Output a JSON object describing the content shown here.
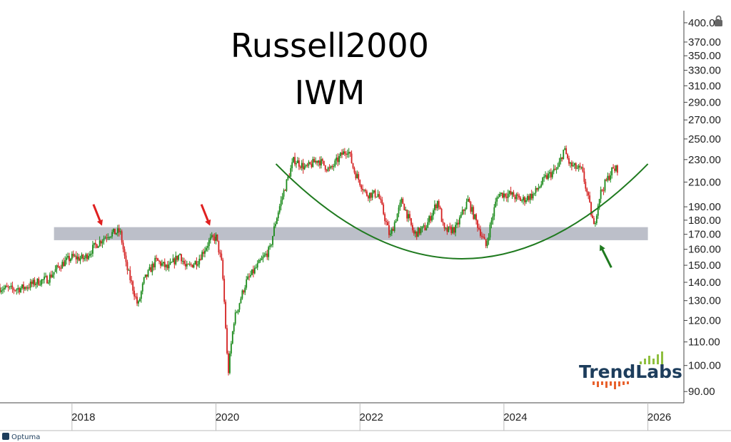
{
  "chart_data": {
    "type": "candlestick",
    "title": "Russell2000",
    "subtitle": "IWM",
    "scale": "log",
    "ylim": [
      86,
      420
    ],
    "xlim": [
      "2017-01-01",
      "2026-07-01"
    ],
    "y_ticks": [
      "400.00",
      "370.00",
      "350.00",
      "330.00",
      "310.00",
      "290.00",
      "270.00",
      "250.00",
      "230.00",
      "210.00",
      "190.00",
      "180.00",
      "170.00",
      "160.00",
      "150.00",
      "140.00",
      "130.00",
      "120.00",
      "110.00",
      "100.00",
      "90.00"
    ],
    "x_ticks": [
      "2018",
      "2020",
      "2022",
      "2024",
      "2026"
    ],
    "grid": false,
    "colors": {
      "up": "#1a8a1a",
      "down": "#d42020",
      "zone": "#b8bcc6",
      "arc": "#1f7a1f",
      "arrow_red": "#e02020",
      "arrow_green": "#1f7a1f"
    },
    "price_path": [
      [
        "2017-01",
        137
      ],
      [
        "2017-03",
        136
      ],
      [
        "2017-05",
        137
      ],
      [
        "2017-07",
        140
      ],
      [
        "2017-09",
        142
      ],
      [
        "2017-11",
        150
      ],
      [
        "2018-01",
        155
      ],
      [
        "2018-03",
        154
      ],
      [
        "2018-05",
        163
      ],
      [
        "2018-07",
        170
      ],
      [
        "2018-09",
        172
      ],
      [
        "2018-10",
        150
      ],
      [
        "2018-12",
        127
      ],
      [
        "2019-01",
        141
      ],
      [
        "2019-03",
        153
      ],
      [
        "2019-05",
        148
      ],
      [
        "2019-07",
        157
      ],
      [
        "2019-08",
        148
      ],
      [
        "2019-10",
        153
      ],
      [
        "2019-12",
        166
      ],
      [
        "2020-01",
        168
      ],
      [
        "2020-02",
        150
      ],
      [
        "2020-03",
        96
      ],
      [
        "2020-04",
        120
      ],
      [
        "2020-06",
        140
      ],
      [
        "2020-08",
        150
      ],
      [
        "2020-10",
        160
      ],
      [
        "2020-11",
        180
      ],
      [
        "2020-12",
        197
      ],
      [
        "2021-02",
        230
      ],
      [
        "2021-04",
        222
      ],
      [
        "2021-06",
        230
      ],
      [
        "2021-08",
        220
      ],
      [
        "2021-10",
        235
      ],
      [
        "2021-11",
        240
      ],
      [
        "2021-12",
        220
      ],
      [
        "2022-02",
        200
      ],
      [
        "2022-04",
        200
      ],
      [
        "2022-06",
        168
      ],
      [
        "2022-08",
        195
      ],
      [
        "2022-10",
        170
      ],
      [
        "2022-12",
        175
      ],
      [
        "2023-02",
        195
      ],
      [
        "2023-03",
        172
      ],
      [
        "2023-05",
        174
      ],
      [
        "2023-07",
        195
      ],
      [
        "2023-08",
        183
      ],
      [
        "2023-10",
        162
      ],
      [
        "2023-12",
        200
      ],
      [
        "2024-02",
        200
      ],
      [
        "2024-04",
        195
      ],
      [
        "2024-06",
        200
      ],
      [
        "2024-08",
        214
      ],
      [
        "2024-10",
        222
      ],
      [
        "2024-11",
        240
      ],
      [
        "2024-12",
        225
      ],
      [
        "2025-02",
        220
      ],
      [
        "2025-04",
        175
      ],
      [
        "2025-05",
        200
      ],
      [
        "2025-07",
        220
      ],
      [
        "2025-08",
        222
      ]
    ],
    "support_zone": {
      "from": "2017-10",
      "to": "2026-01",
      "low": 166,
      "high": 175
    },
    "rounded_base": {
      "from": "2020-11",
      "to": "2026-01",
      "start_y": 226,
      "bottom_y": 154,
      "end_y": 226
    },
    "arrows": [
      {
        "color": "red",
        "at": "2018-06",
        "y": 176
      },
      {
        "color": "red",
        "at": "2019-12",
        "y": 176
      },
      {
        "color": "green",
        "at": "2025-05",
        "y": 163
      }
    ]
  },
  "watermark": {
    "brand": "TrendLabs",
    "footer": "Optuma"
  }
}
